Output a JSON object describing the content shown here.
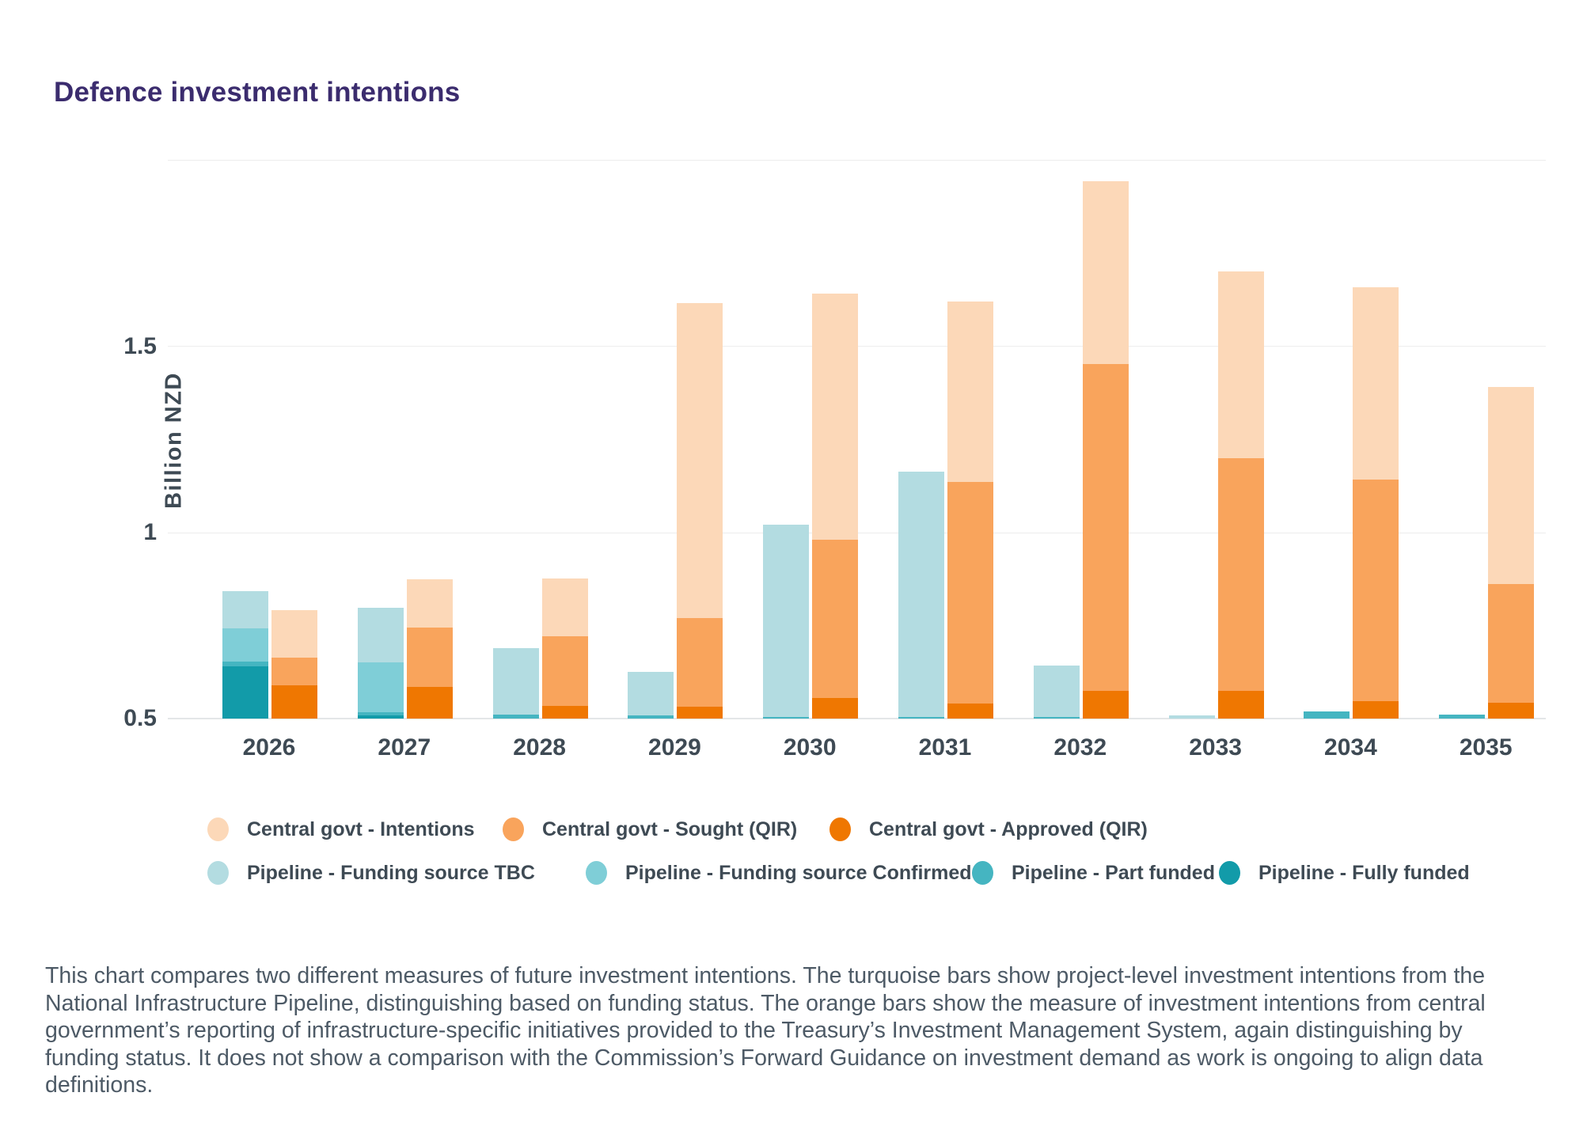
{
  "header": {
    "title": "Defence investment intentions",
    "title_color": "#3b2c6e"
  },
  "chart_data": {
    "type": "bar",
    "title": "Defence investment intentions",
    "xlabel": "",
    "ylabel": "Billion NZD",
    "categories": [
      "2026",
      "2027",
      "2028",
      "2029",
      "2030",
      "2031",
      "2032",
      "2033",
      "2034",
      "2035"
    ],
    "y_axis": {
      "unit": "Billion NZD",
      "min": 0.5,
      "max": 2.0,
      "gridlines": [
        {
          "value": 2.0,
          "label": ""
        },
        {
          "value": 1.5,
          "label": "1.5"
        },
        {
          "value": 1.0,
          "label": "1"
        },
        {
          "value": 0.5,
          "label": "0.5"
        }
      ],
      "note": "Bars are clipped at the axis minimum of 0.5; grid on; legend below chart"
    },
    "palette": {
      "intentions": "#fcd8b8",
      "sought_qir": "#f9a45c",
      "approved_qir": "#ef7701",
      "tbc": "#b3dce1",
      "confirmed": "#7fced7",
      "part_funded": "#45b5c1",
      "fully_funded": "#129ba9"
    },
    "series_labels": {
      "intentions": "Central govt - Intentions",
      "sought_qir": "Central govt - Sought (QIR)",
      "approved_qir": "Central govt - Approved (QIR)",
      "tbc": "Pipeline - Funding source TBC",
      "confirmed": "Pipeline - Funding source Confirmed",
      "part_funded": "Pipeline - Part funded",
      "fully_funded": "Pipeline - Fully funded"
    },
    "bars": [
      {
        "year": "2026",
        "pipeline": [
          {
            "key": "fully_funded",
            "from": 0.5,
            "to": 0.64
          },
          {
            "key": "part_funded",
            "from": 0.64,
            "to": 0.653
          },
          {
            "key": "confirmed",
            "from": 0.653,
            "to": 0.742
          },
          {
            "key": "tbc",
            "from": 0.742,
            "to": 0.842
          }
        ],
        "central": [
          {
            "key": "approved_qir",
            "from": 0.5,
            "to": 0.589
          },
          {
            "key": "sought_qir",
            "from": 0.589,
            "to": 0.664
          },
          {
            "key": "intentions",
            "from": 0.664,
            "to": 0.791
          }
        ]
      },
      {
        "year": "2027",
        "pipeline": [
          {
            "key": "fully_funded",
            "from": 0.5,
            "to": 0.508
          },
          {
            "key": "part_funded",
            "from": 0.508,
            "to": 0.518
          },
          {
            "key": "confirmed",
            "from": 0.518,
            "to": 0.651
          },
          {
            "key": "tbc",
            "from": 0.651,
            "to": 0.797
          }
        ],
        "central": [
          {
            "key": "approved_qir",
            "from": 0.5,
            "to": 0.585
          },
          {
            "key": "sought_qir",
            "from": 0.585,
            "to": 0.744
          },
          {
            "key": "intentions",
            "from": 0.744,
            "to": 0.874
          }
        ]
      },
      {
        "year": "2028",
        "pipeline": [
          {
            "key": "part_funded",
            "from": 0.5,
            "to": 0.511
          },
          {
            "key": "tbc",
            "from": 0.511,
            "to": 0.689
          }
        ],
        "central": [
          {
            "key": "approved_qir",
            "from": 0.5,
            "to": 0.533
          },
          {
            "key": "sought_qir",
            "from": 0.533,
            "to": 0.721
          },
          {
            "key": "intentions",
            "from": 0.721,
            "to": 0.876
          }
        ]
      },
      {
        "year": "2029",
        "pipeline": [
          {
            "key": "part_funded",
            "from": 0.5,
            "to": 0.508
          },
          {
            "key": "tbc",
            "from": 0.508,
            "to": 0.626
          }
        ],
        "central": [
          {
            "key": "approved_qir",
            "from": 0.5,
            "to": 0.532
          },
          {
            "key": "sought_qir",
            "from": 0.532,
            "to": 0.77
          },
          {
            "key": "intentions",
            "from": 0.77,
            "to": 1.616
          }
        ]
      },
      {
        "year": "2030",
        "pipeline": [
          {
            "key": "part_funded",
            "from": 0.5,
            "to": 0.505
          },
          {
            "key": "tbc",
            "from": 0.505,
            "to": 1.021
          }
        ],
        "central": [
          {
            "key": "approved_qir",
            "from": 0.5,
            "to": 0.556
          },
          {
            "key": "sought_qir",
            "from": 0.556,
            "to": 0.981
          },
          {
            "key": "intentions",
            "from": 0.981,
            "to": 1.641
          }
        ]
      },
      {
        "year": "2031",
        "pipeline": [
          {
            "key": "part_funded",
            "from": 0.5,
            "to": 0.504
          },
          {
            "key": "tbc",
            "from": 0.504,
            "to": 1.163
          }
        ],
        "central": [
          {
            "key": "approved_qir",
            "from": 0.5,
            "to": 0.54
          },
          {
            "key": "sought_qir",
            "from": 0.54,
            "to": 1.136
          },
          {
            "key": "intentions",
            "from": 1.136,
            "to": 1.619
          }
        ]
      },
      {
        "year": "2032",
        "pipeline": [
          {
            "key": "part_funded",
            "from": 0.5,
            "to": 0.505
          },
          {
            "key": "tbc",
            "from": 0.505,
            "to": 0.643
          }
        ],
        "central": [
          {
            "key": "approved_qir",
            "from": 0.5,
            "to": 0.574
          },
          {
            "key": "sought_qir",
            "from": 0.574,
            "to": 1.452
          },
          {
            "key": "intentions",
            "from": 1.452,
            "to": 1.943
          }
        ]
      },
      {
        "year": "2033",
        "pipeline": [
          {
            "key": "tbc",
            "from": 0.5,
            "to": 0.508
          }
        ],
        "central": [
          {
            "key": "approved_qir",
            "from": 0.5,
            "to": 0.575
          },
          {
            "key": "sought_qir",
            "from": 0.575,
            "to": 1.199
          },
          {
            "key": "intentions",
            "from": 1.199,
            "to": 1.7
          }
        ]
      },
      {
        "year": "2034",
        "pipeline": [
          {
            "key": "part_funded",
            "from": 0.5,
            "to": 0.519
          }
        ],
        "central": [
          {
            "key": "approved_qir",
            "from": 0.5,
            "to": 0.547
          },
          {
            "key": "sought_qir",
            "from": 0.547,
            "to": 1.141
          },
          {
            "key": "intentions",
            "from": 1.141,
            "to": 1.659
          }
        ]
      },
      {
        "year": "2035",
        "pipeline": [
          {
            "key": "part_funded",
            "from": 0.5,
            "to": 0.511
          }
        ],
        "central": [
          {
            "key": "approved_qir",
            "from": 0.5,
            "to": 0.543
          },
          {
            "key": "sought_qir",
            "from": 0.543,
            "to": 0.862
          },
          {
            "key": "intentions",
            "from": 0.862,
            "to": 1.39
          }
        ]
      }
    ]
  },
  "legend": {
    "rows": [
      [
        {
          "key": "intentions",
          "label": "Central govt - Intentions"
        },
        {
          "key": "sought_qir",
          "label": "Central govt - Sought (QIR)"
        },
        {
          "key": "approved_qir",
          "label": "Central govt - Approved (QIR)"
        }
      ],
      [
        {
          "key": "tbc",
          "label": "Pipeline - Funding source TBC"
        },
        {
          "key": "confirmed",
          "label": "Pipeline - Funding source Confirmed"
        },
        {
          "key": "part_funded",
          "label": "Pipeline - Part funded"
        },
        {
          "key": "fully_funded",
          "label": "Pipeline - Fully funded"
        }
      ]
    ]
  },
  "footnote": {
    "text": "This chart compares two different measures of future investment intentions. The turquoise bars show project-level investment intentions from the National Infrastructure Pipeline, distinguishing based on funding status. The orange bars show the measure of investment intentions from central government’s reporting of infrastructure-specific initiatives provided to the Treasury’s Investment Management System, again distinguishing by funding status. It does not show a comparison with the Commission’s Forward Guidance on investment demand as work is ongoing to align data definitions."
  }
}
